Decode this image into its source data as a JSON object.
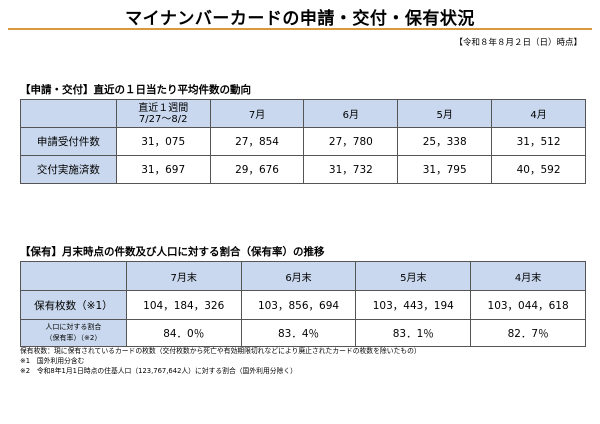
{
  "title": "マイナンバーカードの申請・交付・保有状況",
  "as_of": "【令和８年８月２日（日）時点】",
  "section1": {
    "title": "【申請・交付】直近の１日当たり平均件数の動向",
    "headers": [
      {
        "line1": "直近１週間",
        "line2": "7/27～8/2"
      },
      {
        "line1": "7月"
      },
      {
        "line1": "6月"
      },
      {
        "line1": "5月"
      },
      {
        "line1": "4月"
      }
    ],
    "rows": [
      {
        "label": "申請受付件数",
        "values": [
          "31，075",
          "27，854",
          "27，780",
          "25，338",
          "31，512"
        ]
      },
      {
        "label": "交付実施済数",
        "values": [
          "31，697",
          "29，676",
          "31，732",
          "31，795",
          "40，592"
        ]
      }
    ]
  },
  "section2": {
    "title": "【保有】月末時点の件数及び人口に対する割合（保有率）の推移",
    "headers": [
      "7月末",
      "6月末",
      "5月末",
      "4月末"
    ],
    "rows": [
      {
        "label": "保有枚数（※1）",
        "values": [
          "104，184，326",
          "103，856，694",
          "103，443，194",
          "103，044，618"
        ]
      },
      {
        "label_line1": "人口に対する割合",
        "label_line2": "（保有率）（※2）",
        "values": [
          "84．0％",
          "83．4％",
          "83．1％",
          "82．7％"
        ]
      }
    ]
  },
  "notes": [
    "保有枚数：現に保有されているカードの枚数（交付枚数から死亡や有効期限切れなどにより廃止されたカードの枚数を除いたもの）",
    "※1　国外利用分含む",
    "※2　令和8年1月1日時点の住基人口（123,767,642人）に対する割合（国外利用分除く）"
  ],
  "colors": {
    "accent_rule": "#d99a3c",
    "header_fill": "#c9d8ee"
  }
}
